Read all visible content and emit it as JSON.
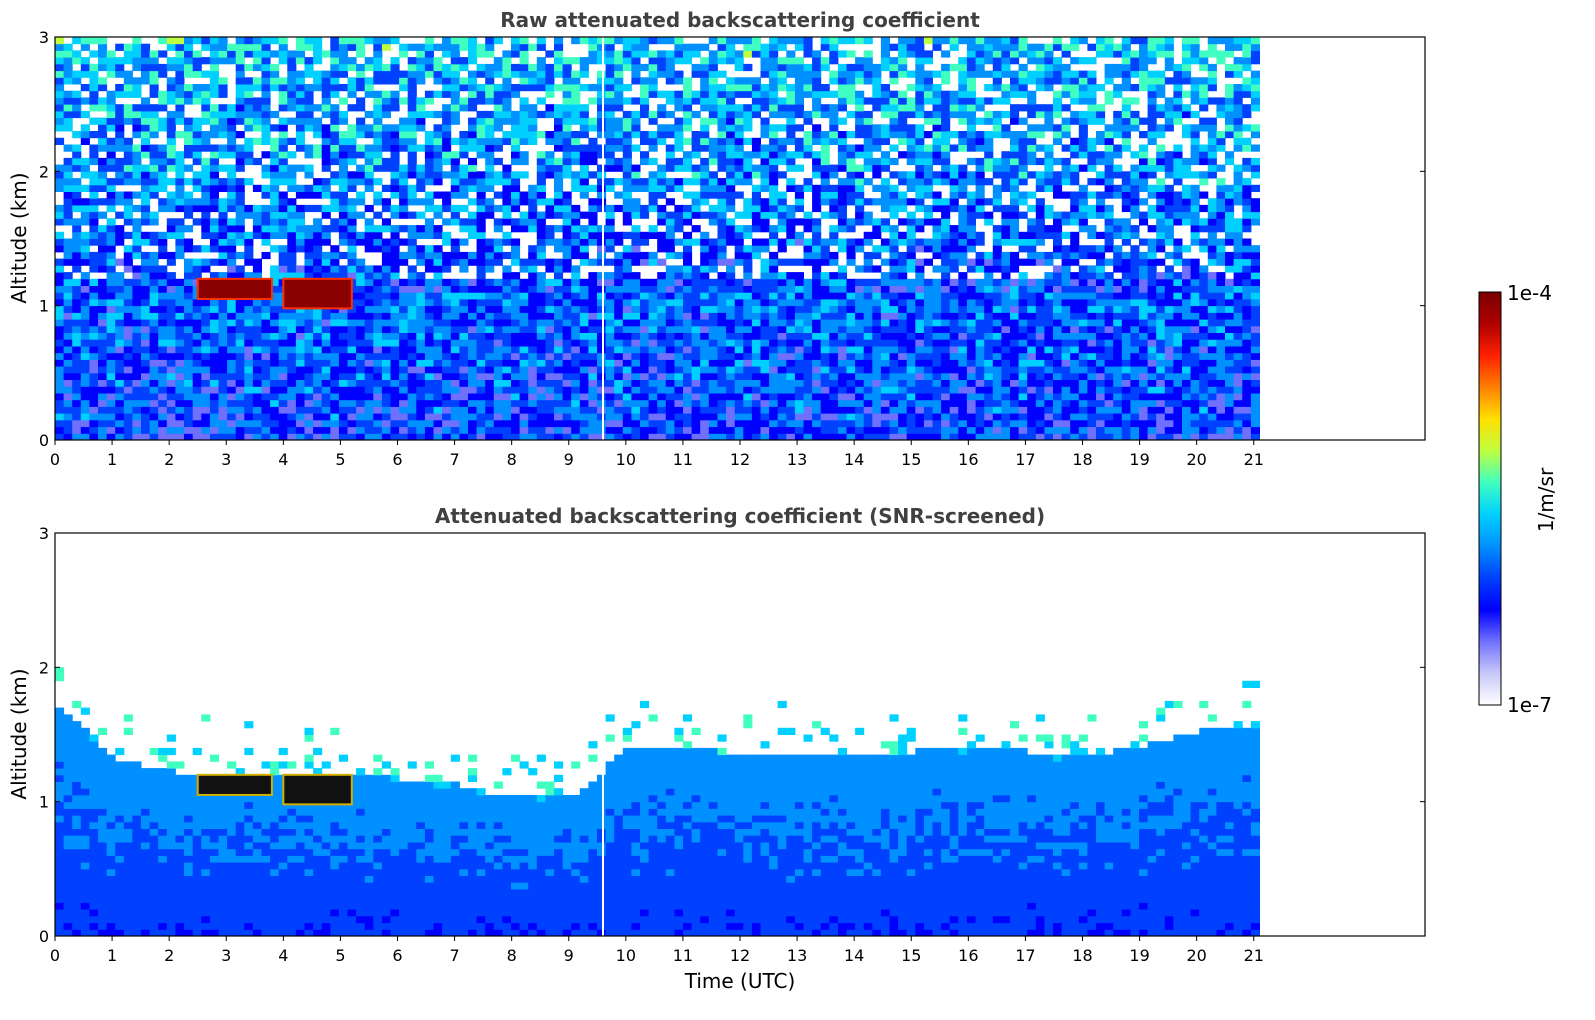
{
  "chart_data": [
    {
      "type": "heatmap",
      "title": "Raw attenuated backscattering coefficient",
      "xlabel": "",
      "ylabel": "Altitude (km)",
      "xlim": [
        0,
        24
      ],
      "ylim": [
        0,
        3
      ],
      "x_ticks": [
        "0",
        "1",
        "2",
        "3",
        "4",
        "5",
        "6",
        "7",
        "8",
        "9",
        "10",
        "11",
        "12",
        "13",
        "14",
        "15",
        "16",
        "17",
        "18",
        "19",
        "20",
        "21"
      ],
      "y_ticks": [
        "0",
        "1",
        "2",
        "3"
      ],
      "data_end_time": 21.1,
      "gap_time": 9.6,
      "cloud_layers": [
        {
          "t_start": 2.5,
          "t_end": 3.8,
          "alt_low": 1.05,
          "alt_high": 1.2
        },
        {
          "t_start": 4.0,
          "t_end": 5.2,
          "alt_low": 0.98,
          "alt_high": 1.2
        }
      ],
      "boundary_layer_top_km": 1.1,
      "screened": false
    },
    {
      "type": "heatmap",
      "title": "Attenuated backscattering coefficient (SNR-screened)",
      "xlabel": "Time (UTC)",
      "ylabel": "Altitude (km)",
      "xlim": [
        0,
        24
      ],
      "ylim": [
        0,
        3
      ],
      "x_ticks": [
        "0",
        "1",
        "2",
        "3",
        "4",
        "5",
        "6",
        "7",
        "8",
        "9",
        "10",
        "11",
        "12",
        "13",
        "14",
        "15",
        "16",
        "17",
        "18",
        "19",
        "20",
        "21"
      ],
      "y_ticks": [
        "0",
        "1",
        "2",
        "3"
      ],
      "data_end_time": 21.1,
      "gap_time": 9.6,
      "cloud_layers": [
        {
          "t_start": 2.5,
          "t_end": 3.8,
          "alt_low": 1.05,
          "alt_high": 1.2
        },
        {
          "t_start": 4.0,
          "t_end": 5.2,
          "alt_low": 0.98,
          "alt_high": 1.2
        }
      ],
      "aerosol_top_km": [
        {
          "t": 0,
          "alt": 1.7
        },
        {
          "t": 1,
          "alt": 1.3
        },
        {
          "t": 2,
          "alt": 1.2
        },
        {
          "t": 3,
          "alt": 1.2
        },
        {
          "t": 4,
          "alt": 1.2
        },
        {
          "t": 5,
          "alt": 1.2
        },
        {
          "t": 6,
          "alt": 1.15
        },
        {
          "t": 7,
          "alt": 1.1
        },
        {
          "t": 8,
          "alt": 1.0
        },
        {
          "t": 9,
          "alt": 1.0
        },
        {
          "t": 10,
          "alt": 1.4
        },
        {
          "t": 11,
          "alt": 1.4
        },
        {
          "t": 12,
          "alt": 1.3
        },
        {
          "t": 13,
          "alt": 1.3
        },
        {
          "t": 14,
          "alt": 1.3
        },
        {
          "t": 15,
          "alt": 1.35
        },
        {
          "t": 16,
          "alt": 1.4
        },
        {
          "t": 17,
          "alt": 1.35
        },
        {
          "t": 18,
          "alt": 1.3
        },
        {
          "t": 19,
          "alt": 1.4
        },
        {
          "t": 20,
          "alt": 1.5
        },
        {
          "t": 21,
          "alt": 1.55
        }
      ],
      "screened": true
    }
  ],
  "colorbar": {
    "min_label": "1e-7",
    "max_label": "1e-4",
    "unit": "1/m/sr",
    "colors": [
      "#ffffff",
      "#c8c8f8",
      "#7070ff",
      "#0000ff",
      "#0040ff",
      "#0090ff",
      "#00d0ff",
      "#40ffc0",
      "#c0ff40",
      "#ffe000",
      "#ff8000",
      "#ff2000",
      "#b00000",
      "#7a0000"
    ]
  }
}
